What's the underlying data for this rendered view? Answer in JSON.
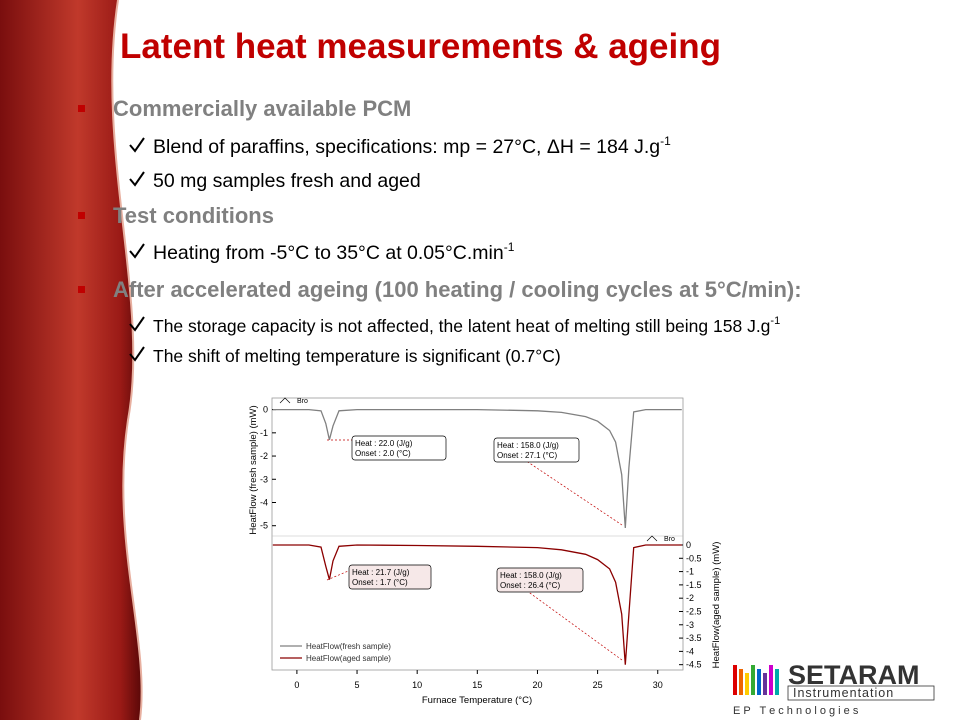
{
  "title": "Latent heat measurements & ageing",
  "bullets": [
    {
      "text": "Commercially available PCM",
      "items": [
        {
          "text": "Blend of paraffins, specifications: mp = 27°C, ΔH = 184 J.g",
          "sup": "-1"
        },
        {
          "text": "50 mg samples fresh and aged"
        }
      ]
    },
    {
      "text": "Test conditions",
      "items": [
        {
          "text": "Heating from -5°C to 35°C at 0.05°C.min",
          "sup": "-1"
        }
      ]
    },
    {
      "text": "After accelerated ageing (100 heating / cooling cycles at 5°C/min):",
      "items": [
        {
          "text": "The storage capacity is not affected, the latent heat of melting still being 158 J.g",
          "sup": "-1"
        },
        {
          "text": "The shift of melting temperature is significant (0.7°C)"
        }
      ]
    }
  ],
  "chart_data": {
    "type": "line",
    "xlabel": "Furnace Temperature (°C)",
    "ylabel": "HeatFlow (fresh sample) (mW)",
    "y2label": "HeatFlow(aged sample) (mW)",
    "x": [
      -2,
      0,
      1,
      2,
      2.4,
      2.7,
      3,
      3.5,
      5,
      10,
      15,
      20,
      22,
      24,
      25,
      26,
      26.5,
      27,
      27.3,
      27.6,
      28,
      29,
      32
    ],
    "series": [
      {
        "name": "HeatFlow(fresh sample)",
        "color": "#808080",
        "values": [
          0,
          0,
          0,
          -0.05,
          -0.6,
          -1.3,
          -0.7,
          -0.05,
          0,
          0,
          0,
          -0.05,
          -0.12,
          -0.3,
          -0.5,
          -0.9,
          -1.4,
          -2.8,
          -5.1,
          -2.5,
          -0.1,
          0,
          0
        ]
      },
      {
        "name": "HeatFlow(aged sample)",
        "color": "#8b0000",
        "axis": "y2",
        "values": [
          0,
          0,
          0,
          -0.08,
          -0.8,
          -1.3,
          -0.6,
          -0.05,
          0,
          -0.02,
          -0.05,
          -0.1,
          -0.18,
          -0.35,
          -0.55,
          -0.9,
          -1.4,
          -2.6,
          -4.5,
          -2.6,
          -0.1,
          0,
          0
        ]
      }
    ],
    "xlim": [
      -2.07,
      32.1
    ],
    "xticks": [
      0,
      5,
      10,
      15,
      20,
      25,
      30
    ],
    "ylim": [
      -5.4,
      0.5
    ],
    "yticks": [
      0,
      -1,
      -2,
      -3,
      -4,
      -5
    ],
    "y2lim": [
      -4.7,
      0.3
    ],
    "y2ticks": [
      0,
      -0.5,
      -1,
      -1.5,
      -2,
      -2.5,
      -3,
      -3.5,
      -4,
      -4.5
    ],
    "annotations": [
      {
        "lines": [
          "Heat : 22.0 (J/g)",
          "Onset : 2.0 (°C)"
        ]
      },
      {
        "lines": [
          "Heat : 158.0 (J/g)",
          "Onset : 27.1 (°C)"
        ]
      },
      {
        "lines": [
          "Heat : 21.7 (J/g)",
          "Onset : 1.7 (°C)"
        ]
      },
      {
        "lines": [
          "Heat : 158.0 (J/g)",
          "Onset : 26.4 (°C)"
        ]
      }
    ],
    "flags": [
      "Bro",
      "Bro"
    ]
  },
  "logo": {
    "name": "SETARAM",
    "line": "Instrumentation",
    "tagline": "E P   T e c h n o l o g i e s"
  }
}
